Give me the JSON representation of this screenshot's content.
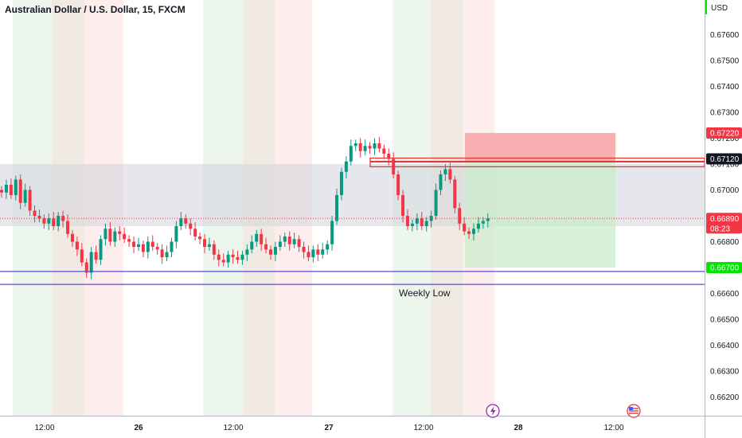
{
  "chart_data": {
    "type": "candlestick",
    "title": "Australian Dollar / U.S. Dollar, 15, FXCM",
    "currency": "USD",
    "y_ticks": [
      "0.67600",
      "0.67500",
      "0.67400",
      "0.67300",
      "0.67200",
      "0.67100",
      "0.67000",
      "0.66900",
      "0.66800",
      "0.66700",
      "0.66600",
      "0.66500",
      "0.66400",
      "0.66300",
      "0.66200"
    ],
    "x_ticks": [
      {
        "label": "12:00",
        "bold": false
      },
      {
        "label": "26",
        "bold": true
      },
      {
        "label": "12:00",
        "bold": false
      },
      {
        "label": "27",
        "bold": true
      },
      {
        "label": "12:00",
        "bold": false
      },
      {
        "label": "28",
        "bold": true
      },
      {
        "label": "12:00",
        "bold": false
      }
    ],
    "price_labels": [
      {
        "label": "0.67220",
        "value": 0.6722,
        "color": "#f23645"
      },
      {
        "label": "0.67120",
        "value": 0.6712,
        "color": "#131722"
      },
      {
        "label": "0.66890",
        "value": 0.6689,
        "color": "#f23645",
        "sub": "08:23"
      },
      {
        "label": "0.66700",
        "value": 0.667,
        "color": "#00e600"
      }
    ],
    "last_price": 0.6689,
    "countdown": "08:23",
    "resistance_zone": [
      0.6686,
      0.671
    ],
    "weekly_low_lines": [
      0.66685,
      0.66635
    ],
    "annotations": [
      "Weekly Low"
    ],
    "trade_box": {
      "entry": 0.6711,
      "stop": 0.6722,
      "target": 0.667
    },
    "candles_close_series": [
      0.6699,
      0.6702,
      0.6698,
      0.6704,
      0.6695,
      0.67,
      0.6692,
      0.669,
      0.6689,
      0.6687,
      0.6689,
      0.6686,
      0.669,
      0.6688,
      0.6683,
      0.668,
      0.6677,
      0.6672,
      0.6668,
      0.6676,
      0.6673,
      0.6681,
      0.6685,
      0.668,
      0.6684,
      0.6683,
      0.6681,
      0.668,
      0.6678,
      0.6679,
      0.6676,
      0.668,
      0.6678,
      0.6677,
      0.6674,
      0.6676,
      0.668,
      0.6686,
      0.6689,
      0.6687,
      0.6685,
      0.6682,
      0.6681,
      0.6678,
      0.6679,
      0.6675,
      0.6673,
      0.6672,
      0.6675,
      0.6674,
      0.6673,
      0.6675,
      0.6677,
      0.668,
      0.6683,
      0.6679,
      0.6677,
      0.6675,
      0.6678,
      0.668,
      0.6682,
      0.6679,
      0.6681,
      0.6678,
      0.6676,
      0.6674,
      0.6677,
      0.6675,
      0.6677,
      0.6679,
      0.6688,
      0.6698,
      0.6707,
      0.6711,
      0.6717,
      0.6718,
      0.6715,
      0.6717,
      0.6716,
      0.6718,
      0.6716,
      0.6714,
      0.6712,
      0.6706,
      0.6698,
      0.669,
      0.6686,
      0.6687,
      0.6689,
      0.6686,
      0.6688,
      0.669,
      0.67,
      0.6706,
      0.6708,
      0.6704,
      0.6693,
      0.6687,
      0.6684,
      0.6683,
      0.6685,
      0.6687,
      0.6688,
      0.6689
    ]
  }
}
